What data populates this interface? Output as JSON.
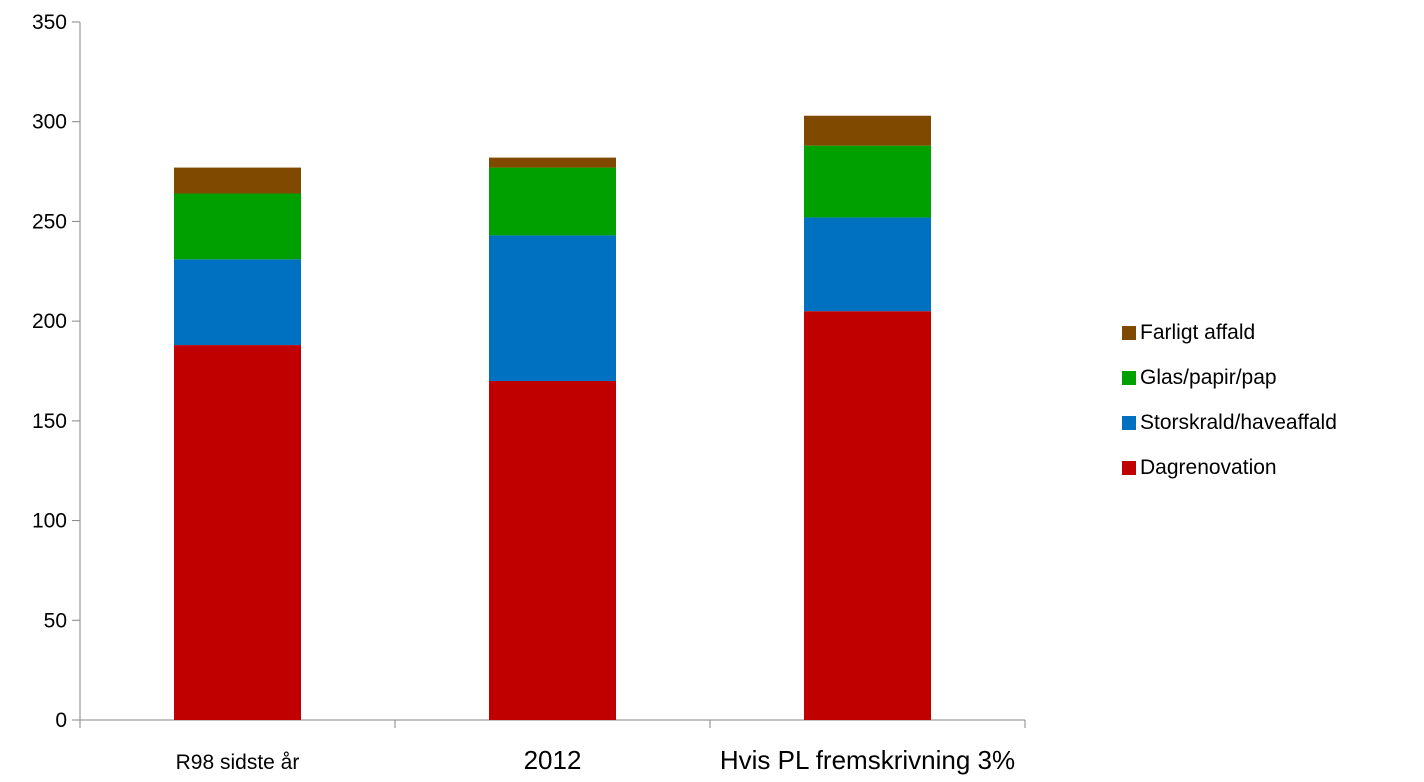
{
  "chart_data": {
    "type": "bar",
    "stacked": true,
    "title": "",
    "xlabel": "",
    "ylabel": "",
    "ylim": [
      0,
      350
    ],
    "yticks": [
      0,
      50,
      100,
      150,
      200,
      250,
      300,
      350
    ],
    "ytick_labels": [
      "0",
      "50",
      "100",
      "150",
      "200",
      "250",
      "300",
      "350"
    ],
    "grid": false,
    "legend_position": "right",
    "categories": [
      "R98 sidste år",
      "2012",
      "Hvis PL fremskrivning 3%"
    ],
    "series": [
      {
        "name": "Dagrenovation",
        "color": "#c00000",
        "values": [
          188,
          170,
          205
        ]
      },
      {
        "name": "Storskrald/haveaffald",
        "color": "#0070c0",
        "values": [
          43,
          73,
          47
        ]
      },
      {
        "name": "Glas/papir/pap",
        "color": "#00a000",
        "values": [
          33,
          34,
          36
        ]
      },
      {
        "name": "Farligt affald",
        "color": "#7f4a00",
        "values": [
          13,
          5,
          15
        ]
      }
    ],
    "legend_order": [
      3,
      2,
      1,
      0
    ]
  }
}
